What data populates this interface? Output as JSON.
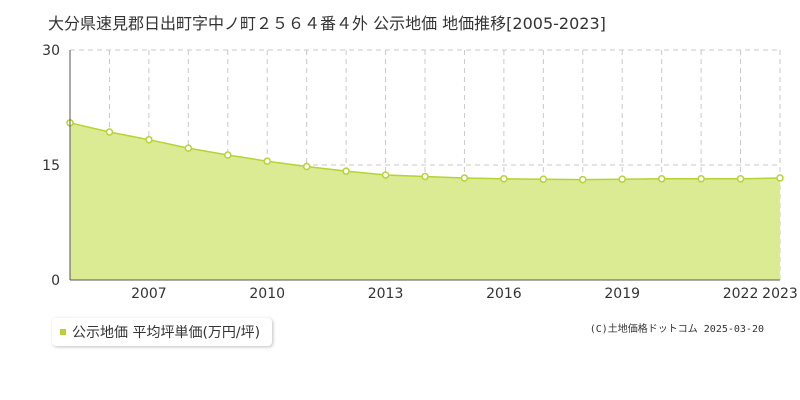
{
  "title": "大分県速見郡日出町字中ノ町２５６４番４外 公示地価 地価推移[2005-2023]",
  "legend_label": "公示地価 平均坪単価(万円/坪)",
  "credit": "(C)土地価格ドットコム 2025-03-20",
  "colors": {
    "fill": "#dbeb93",
    "line": "#b5d334",
    "grid": "#c8c8c8",
    "axis": "#555555"
  },
  "chart_data": {
    "type": "area",
    "title": "大分県速見郡日出町字中ノ町２５６４番４外 公示地価 地価推移[2005-2023]",
    "x": [
      2005,
      2006,
      2007,
      2008,
      2009,
      2010,
      2011,
      2012,
      2013,
      2014,
      2015,
      2016,
      2017,
      2018,
      2019,
      2020,
      2021,
      2022,
      2023
    ],
    "series": [
      {
        "name": "公示地価 平均坪単価(万円/坪)",
        "values": [
          20.5,
          19.3,
          18.3,
          17.2,
          16.3,
          15.5,
          14.8,
          14.2,
          13.7,
          13.5,
          13.3,
          13.2,
          13.15,
          13.1,
          13.15,
          13.2,
          13.2,
          13.2,
          13.3
        ]
      }
    ],
    "x_tick_labels": [
      "2007",
      "2010",
      "2013",
      "2016",
      "2019",
      "2022",
      "2023"
    ],
    "y_tick_labels": [
      "0",
      "15",
      "30"
    ],
    "ylim": [
      0,
      30
    ],
    "xlim": [
      2005,
      2023
    ],
    "grid": true,
    "xlabel": "",
    "ylabel": ""
  }
}
